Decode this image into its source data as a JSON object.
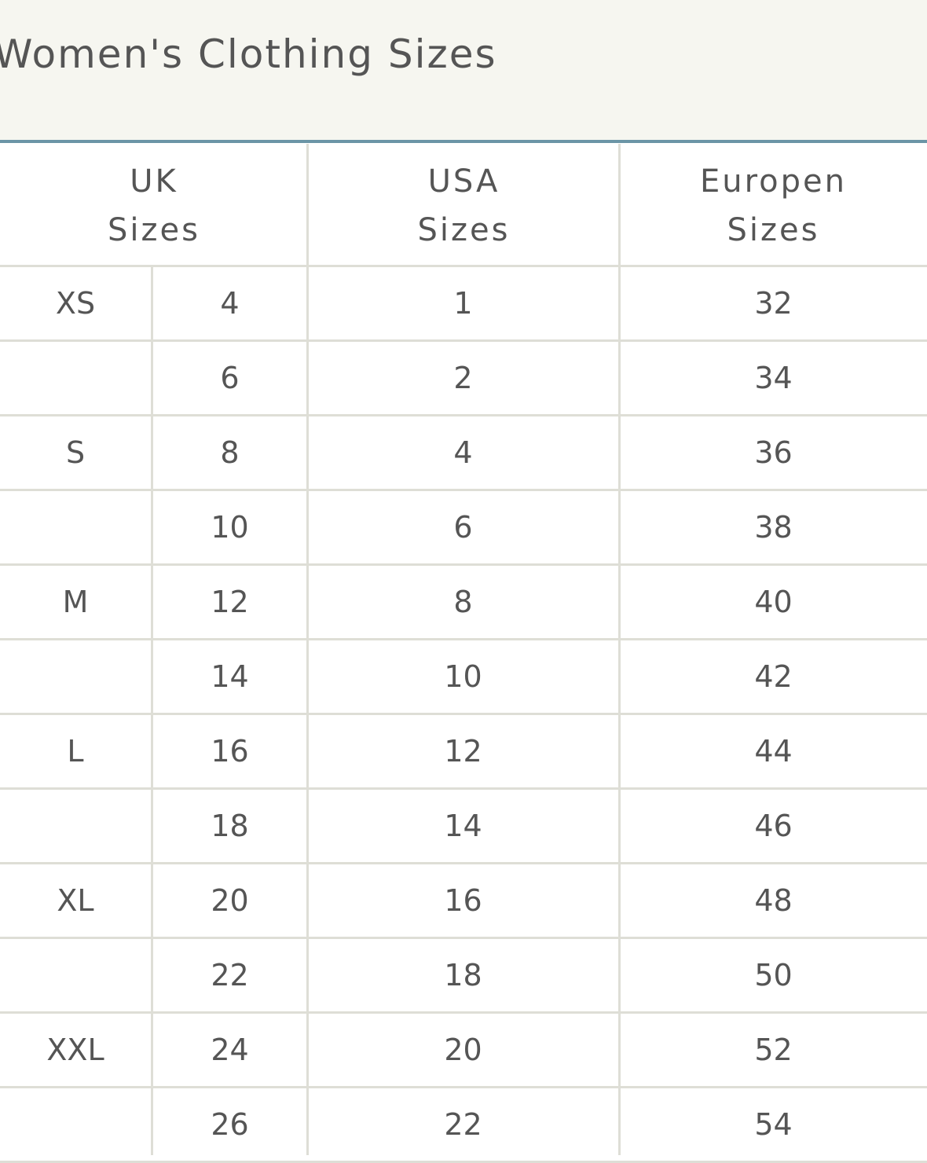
{
  "header": {
    "title": "Women's Clothing Sizes"
  },
  "table": {
    "columns": [
      "UK\nSizes",
      "USA\nSizes",
      "Europen\nSizes"
    ],
    "rows": [
      {
        "size": "XS",
        "uk": 4,
        "usa": 1,
        "eu": 32
      },
      {
        "uk": 6,
        "usa": 2,
        "eu": 34
      },
      {
        "size": "S",
        "uk": 8,
        "usa": 4,
        "eu": 36
      },
      {
        "uk": 10,
        "usa": 6,
        "eu": 38
      },
      {
        "size": "M",
        "uk": 12,
        "usa": 8,
        "eu": 40
      },
      {
        "uk": 14,
        "usa": 10,
        "eu": 42
      },
      {
        "size": "L",
        "uk": 16,
        "usa": 12,
        "eu": 44
      },
      {
        "uk": 18,
        "usa": 14,
        "eu": 46
      },
      {
        "size": "XL",
        "uk": 20,
        "usa": 16,
        "eu": 48
      },
      {
        "uk": 22,
        "usa": 18,
        "eu": 50
      },
      {
        "size": "XXL",
        "uk": 24,
        "usa": 20,
        "eu": 52
      },
      {
        "uk": 26,
        "usa": 22,
        "eu": 54
      }
    ]
  }
}
